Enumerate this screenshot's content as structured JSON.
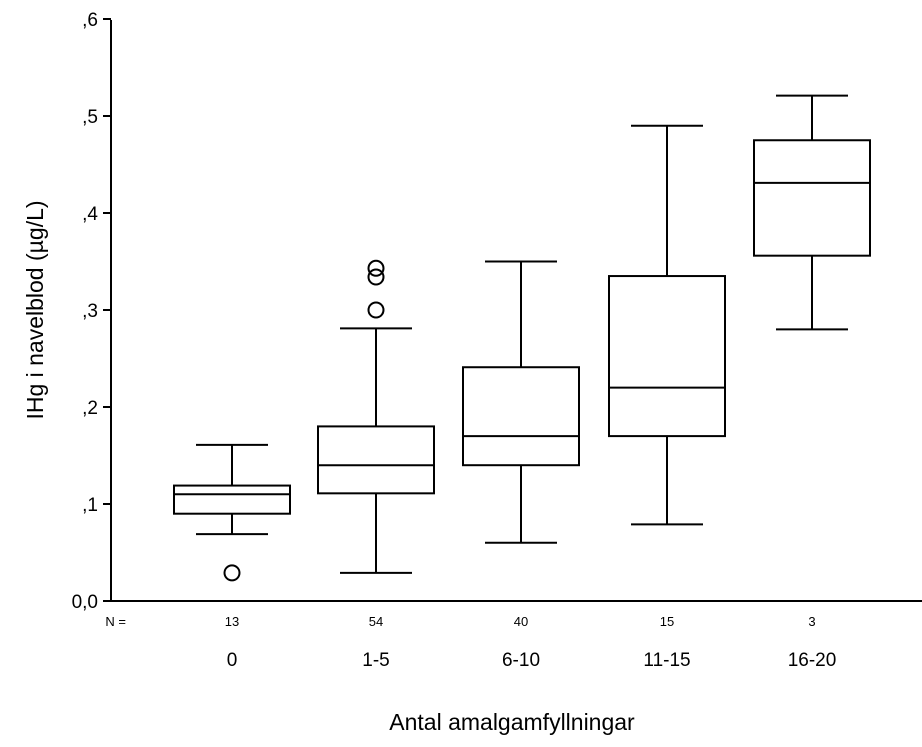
{
  "chart_data": {
    "type": "boxplot",
    "title": "",
    "xlabel": "Antal amalgamfyllningar",
    "ylabel": "IHg i navelblod (µg/L)",
    "ylim": [
      0,
      0.6
    ],
    "yticks": [
      0,
      0.1,
      0.2,
      0.3,
      0.4,
      0.5,
      0.6
    ],
    "ytick_labels": [
      "0,0",
      ",1",
      ",2",
      ",3",
      ",4",
      ",5",
      ",6"
    ],
    "n_prefix": "N =",
    "grid": false,
    "legend": "none",
    "categories": [
      "0",
      "1-5",
      "6-10",
      "11-15",
      "16-20"
    ],
    "n": [
      "13",
      "54",
      "40",
      "15",
      "3"
    ],
    "boxes": [
      {
        "category": "0",
        "whisker_low": 0.069,
        "q1": 0.09,
        "median": 0.11,
        "q3": 0.119,
        "whisker_high": 0.161,
        "outliers": [
          0.029
        ]
      },
      {
        "category": "1-5",
        "whisker_low": 0.029,
        "q1": 0.111,
        "median": 0.14,
        "q3": 0.18,
        "whisker_high": 0.281,
        "outliers": [
          0.3,
          0.334,
          0.343
        ]
      },
      {
        "category": "6-10",
        "whisker_low": 0.06,
        "q1": 0.14,
        "median": 0.17,
        "q3": 0.241,
        "whisker_high": 0.35,
        "outliers": []
      },
      {
        "category": "11-15",
        "whisker_low": 0.079,
        "q1": 0.17,
        "median": 0.22,
        "q3": 0.335,
        "whisker_high": 0.49,
        "outliers": []
      },
      {
        "category": "16-20",
        "whisker_low": 0.28,
        "q1": 0.356,
        "median": 0.431,
        "q3": 0.475,
        "whisker_high": 0.521,
        "outliers": []
      }
    ]
  }
}
